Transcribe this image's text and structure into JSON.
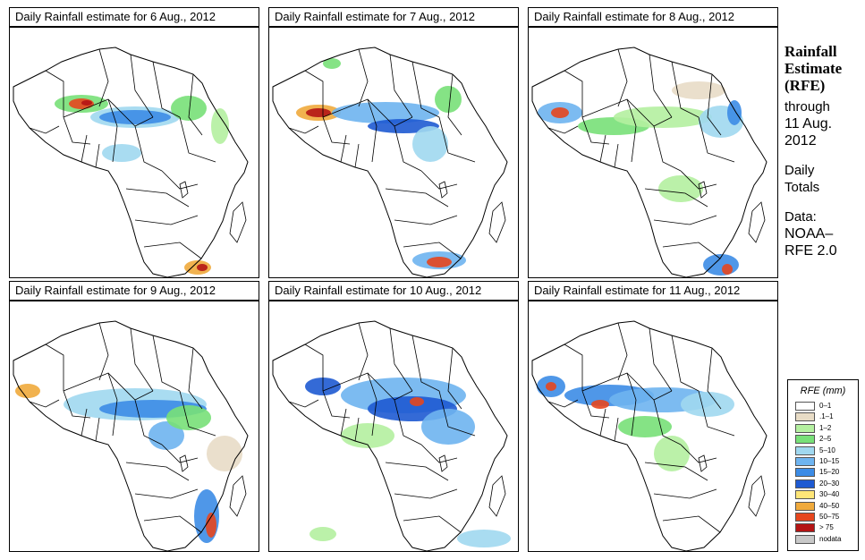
{
  "panels": [
    {
      "title": "Daily Rainfall estimate for  6 Aug., 2012"
    },
    {
      "title": "Daily Rainfall estimate for  7 Aug., 2012"
    },
    {
      "title": "Daily Rainfall estimate for  8 Aug., 2012"
    },
    {
      "title": "Daily Rainfall estimate for  9 Aug., 2012"
    },
    {
      "title": "Daily Rainfall estimate for  10 Aug., 2012"
    },
    {
      "title": "Daily Rainfall estimate for  11 Aug., 2012"
    }
  ],
  "sidebar": {
    "heading": [
      "Rainfall",
      "Estimate",
      "(RFE)"
    ],
    "through_label": "through",
    "date_line1": "11 Aug.",
    "date_line2": "2012",
    "daily": "Daily",
    "totals": "Totals",
    "data_label": "Data:",
    "source_line1": "NOAA–",
    "source_line2": "RFE 2.0"
  },
  "legend": {
    "title": "RFE (mm)",
    "items": [
      {
        "label": "0–1",
        "color": "#ffffff"
      },
      {
        "label": ".1–1",
        "color": "#e8dcc6"
      },
      {
        "label": "1–2",
        "color": "#b4f0a0"
      },
      {
        "label": "2–5",
        "color": "#78e078"
      },
      {
        "label": "5–10",
        "color": "#a0d8f0"
      },
      {
        "label": "10–15",
        "color": "#6eb4f0"
      },
      {
        "label": "15–20",
        "color": "#3c8ce6"
      },
      {
        "label": "20–30",
        "color": "#1e5ad2"
      },
      {
        "label": "30–40",
        "color": "#ffe678"
      },
      {
        "label": "40–50",
        "color": "#f0aa3c"
      },
      {
        "label": "50–75",
        "color": "#e6461e"
      },
      {
        "label": "> 75",
        "color": "#b41414"
      },
      {
        "label": "nodata",
        "color": "#c8c8c8"
      }
    ]
  }
}
